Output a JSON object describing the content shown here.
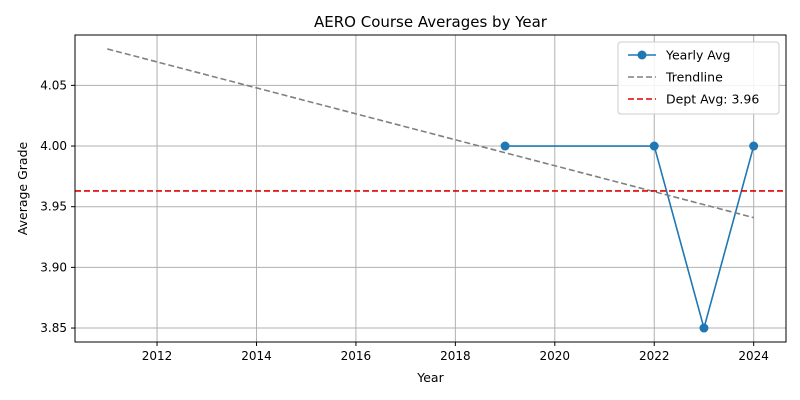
{
  "chart_data": {
    "type": "line",
    "title": "AERO Course Averages by Year",
    "xlabel": "Year",
    "ylabel": "Average Grade",
    "xlim": [
      2010.35,
      2024.65
    ],
    "ylim": [
      3.8385,
      4.0915
    ],
    "xticks": [
      2012,
      2014,
      2016,
      2018,
      2020,
      2022,
      2024
    ],
    "xtick_labels": [
      "2012",
      "2014",
      "2016",
      "2018",
      "2020",
      "2022",
      "2024"
    ],
    "yticks": [
      3.85,
      3.9,
      3.95,
      4.0,
      4.05
    ],
    "ytick_labels": [
      "3.85",
      "3.90",
      "3.95",
      "4.00",
      "4.05"
    ],
    "grid": true,
    "legend_position": "top-right",
    "series": [
      {
        "name": "Yearly Avg",
        "kind": "line-markers",
        "color": "#1f77b4",
        "x": [
          2019,
          2022,
          2023,
          2024
        ],
        "y": [
          4.0,
          4.0,
          3.85,
          4.0
        ],
        "connected": [
          false,
          true,
          true,
          true
        ]
      },
      {
        "name": "Trendline",
        "kind": "dashed-line",
        "color": "#808080",
        "x": [
          2011,
          2024
        ],
        "y": [
          4.08,
          3.941
        ]
      },
      {
        "name": "Dept Avg: 3.96",
        "kind": "horizontal-dashed",
        "color": "#e00000",
        "y": 3.963
      }
    ]
  }
}
